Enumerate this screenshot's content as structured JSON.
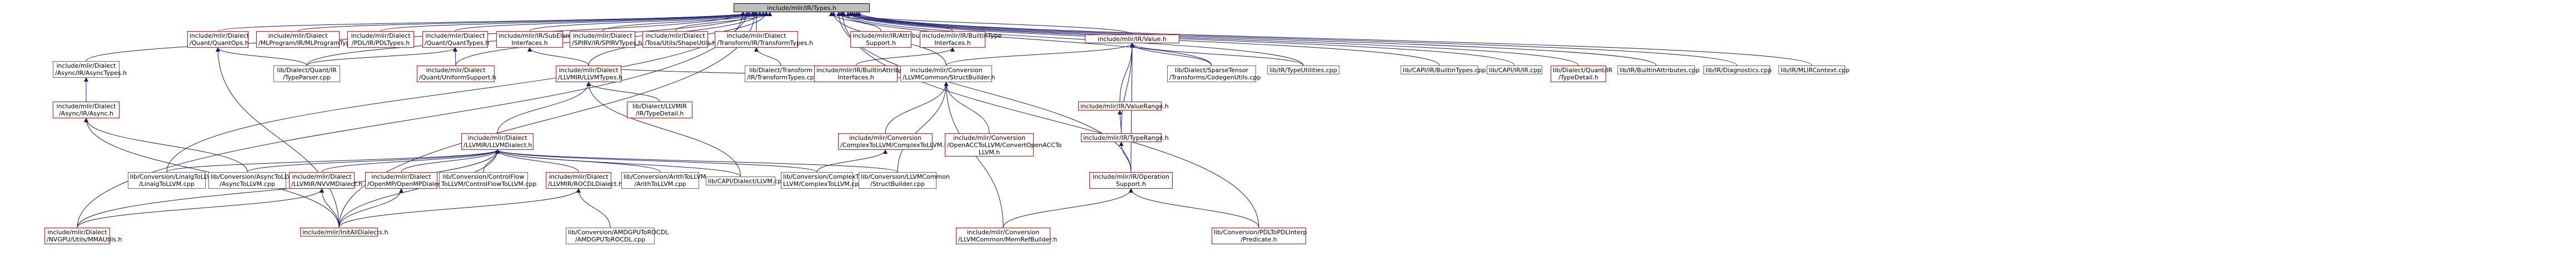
{
  "graph": {
    "root": "include/mlir/IR/Types.h",
    "nodes": {
      "root": {
        "lines": [
          "include/mlir/IR/Types.h"
        ],
        "color": "root"
      },
      "async_types": {
        "lines": [
          "include/mlir/Dialect",
          "/Async/IR/AsyncTypes.h"
        ],
        "color": "black"
      },
      "async_h": {
        "lines": [
          "include/mlir/Dialect",
          "/Async/IR/Async.h"
        ],
        "color": "red"
      },
      "quant_ops": {
        "lines": [
          "include/mlir/Dialect",
          "/Quant/QuantOps.h"
        ],
        "color": "red"
      },
      "mlprogram": {
        "lines": [
          "include/mlir/Dialect",
          "/MLProgram/IR/MLProgramTypes.h"
        ],
        "color": "red"
      },
      "pdl_types": {
        "lines": [
          "include/mlir/Dialect",
          "/PDL/IR/PDLTypes.h"
        ],
        "color": "red"
      },
      "quant_types": {
        "lines": [
          "include/mlir/Dialect",
          "/Quant/QuantTypes.h"
        ],
        "color": "red"
      },
      "quant_typeparser": {
        "lines": [
          "lib/Dialect/Quant/IR",
          "/TypeParser.cpp"
        ],
        "color": "black"
      },
      "quant_uniform": {
        "lines": [
          "include/mlir/Dialect",
          "/Quant/UniformSupport.h"
        ],
        "color": "red"
      },
      "subelement": {
        "lines": [
          "include/mlir/IR/SubElement",
          "Interfaces.h"
        ],
        "color": "red"
      },
      "spirv_types": {
        "lines": [
          "include/mlir/Dialect",
          "/SPIRV/IR/SPIRVTypes.h"
        ],
        "color": "red"
      },
      "tosa_shape": {
        "lines": [
          "include/mlir/Dialect",
          "/Tosa/Utils/ShapeUtils.h"
        ],
        "color": "red"
      },
      "transform_types": {
        "lines": [
          "include/mlir/Dialect",
          "/Transform/IR/TransformTypes.h"
        ],
        "color": "red"
      },
      "transform_cpp": {
        "lines": [
          "lib/Dialect/Transform",
          "/IR/TransformTypes.cpp"
        ],
        "color": "black"
      },
      "attr_support": {
        "lines": [
          "include/mlir/IR/Attribute",
          "Support.h"
        ],
        "color": "red"
      },
      "builtin_type_if": {
        "lines": [
          "include/mlir/IR/BuiltinType",
          "Interfaces.h"
        ],
        "color": "red"
      },
      "builtin_attr_if": {
        "lines": [
          "include/mlir/IR/BuiltinAttribute",
          "Interfaces.h"
        ],
        "color": "red"
      },
      "value_h": {
        "lines": [
          "include/mlir/IR/Value.h"
        ],
        "color": "red"
      },
      "llvm_types": {
        "lines": [
          "include/mlir/Dialect",
          "/LLVMIR/LLVMTypes.h"
        ],
        "color": "red"
      },
      "llvm_dialect": {
        "lines": [
          "include/mlir/Dialect",
          "/LLVMIR/LLVMDialect.h"
        ],
        "color": "red"
      },
      "llvmir_typedetail": {
        "lines": [
          "lib/Dialect/LLVMIR",
          "/IR/TypeDetail.h"
        ],
        "color": "red"
      },
      "structbuilder_h": {
        "lines": [
          "include/mlir/Conversion",
          "/LLVMCommon/StructBuilder.h"
        ],
        "color": "black"
      },
      "complex_to_llvm_h": {
        "lines": [
          "include/mlir/Conversion",
          "/ComplexToLLVM/ComplexToLLVM.h"
        ],
        "color": "red"
      },
      "openacc_h": {
        "lines": [
          "include/mlir/Conversion",
          "/OpenACCToLLVM/ConvertOpenACCTo",
          "LLVM.h"
        ],
        "color": "red"
      },
      "sparse_codegen": {
        "lines": [
          "lib/Dialect/SparseTensor",
          "/Transforms/CodegenUtils.cpp"
        ],
        "color": "black"
      },
      "valuerange_h": {
        "lines": [
          "include/mlir/IR/ValueRange.h"
        ],
        "color": "red"
      },
      "typerange_h": {
        "lines": [
          "include/mlir/IR/TypeRange.h"
        ],
        "color": "red"
      },
      "typeutilities": {
        "lines": [
          "lib/IR/TypeUtilities.cpp"
        ],
        "color": "black"
      },
      "op_support": {
        "lines": [
          "include/mlir/IR/Operation",
          "Support.h"
        ],
        "color": "red"
      },
      "memref_builder": {
        "lines": [
          "include/mlir/Conversion",
          "/LLVMCommon/MemRefBuilder.h"
        ],
        "color": "red"
      },
      "pdl_interp": {
        "lines": [
          "lib/Conversion/PDLToPDLInterp",
          "/Predicate.h"
        ],
        "color": "red"
      },
      "capi_builtin": {
        "lines": [
          "lib/CAPI/IR/BuiltinTypes.cpp"
        ],
        "color": "black"
      },
      "capi_ir": {
        "lines": [
          "lib/CAPI/IR/IR.cpp"
        ],
        "color": "black"
      },
      "quant_typedetail": {
        "lines": [
          "lib/Dialect/Quant/IR",
          "/TypeDetail.h"
        ],
        "color": "red"
      },
      "builtin_attrs": {
        "lines": [
          "lib/IR/BuiltinAttributes.cpp"
        ],
        "color": "black"
      },
      "diagnostics": {
        "lines": [
          "lib/IR/Diagnostics.cpp"
        ],
        "color": "black"
      },
      "mlircontext": {
        "lines": [
          "lib/IR/MLIRContext.cpp"
        ],
        "color": "black"
      },
      "linalg_to_llvm": {
        "lines": [
          "lib/Conversion/LinalgToLLVM",
          "/LinalgToLLVM.cpp"
        ],
        "color": "black"
      },
      "async_to_llvm": {
        "lines": [
          "lib/Conversion/AsyncToLLVM",
          "/AsyncToLLVM.cpp"
        ],
        "color": "black"
      },
      "nvvm_dialect": {
        "lines": [
          "include/mlir/Dialect",
          "/LLVMIR/NVVMDialect.h"
        ],
        "color": "red"
      },
      "openmp_dialect": {
        "lines": [
          "include/mlir/Dialect",
          "/OpenMP/OpenMPDialect.h"
        ],
        "color": "red"
      },
      "cf_to_llvm": {
        "lines": [
          "lib/Conversion/ControlFlow",
          "ToLLVM/ControlFlowToLLVM.cpp"
        ],
        "color": "black"
      },
      "rocdl_dialect": {
        "lines": [
          "include/mlir/Dialect",
          "/LLVMIR/ROCDLDialect.h"
        ],
        "color": "red"
      },
      "arith_to_llvm": {
        "lines": [
          "lib/Conversion/ArithToLLVM",
          "/ArithToLLVM.cpp"
        ],
        "color": "black"
      },
      "capi_llvm": {
        "lines": [
          "lib/CAPI/Dialect/LLVM.cpp"
        ],
        "color": "black"
      },
      "complex_to_llvm_cpp": {
        "lines": [
          "lib/Conversion/ComplexTo",
          "LLVM/ComplexToLLVM.cpp"
        ],
        "color": "black"
      },
      "structbuilder_cpp": {
        "lines": [
          "lib/Conversion/LLVMCommon",
          "/StructBuilder.cpp"
        ],
        "color": "black"
      },
      "nvgpu_mma": {
        "lines": [
          "include/mlir/Dialect",
          "/NVGPU/Utils/MMAUtils.h"
        ],
        "color": "red"
      },
      "all_dialects": {
        "lines": [
          "include/mlir/InitAllDialects.h"
        ],
        "color": "red"
      },
      "amdgpu_to_rocdl": {
        "lines": [
          "lib/Conversion/AMDGPUToROCDL",
          "/AMDGPUToROCDL.cpp"
        ],
        "color": "black"
      }
    }
  }
}
